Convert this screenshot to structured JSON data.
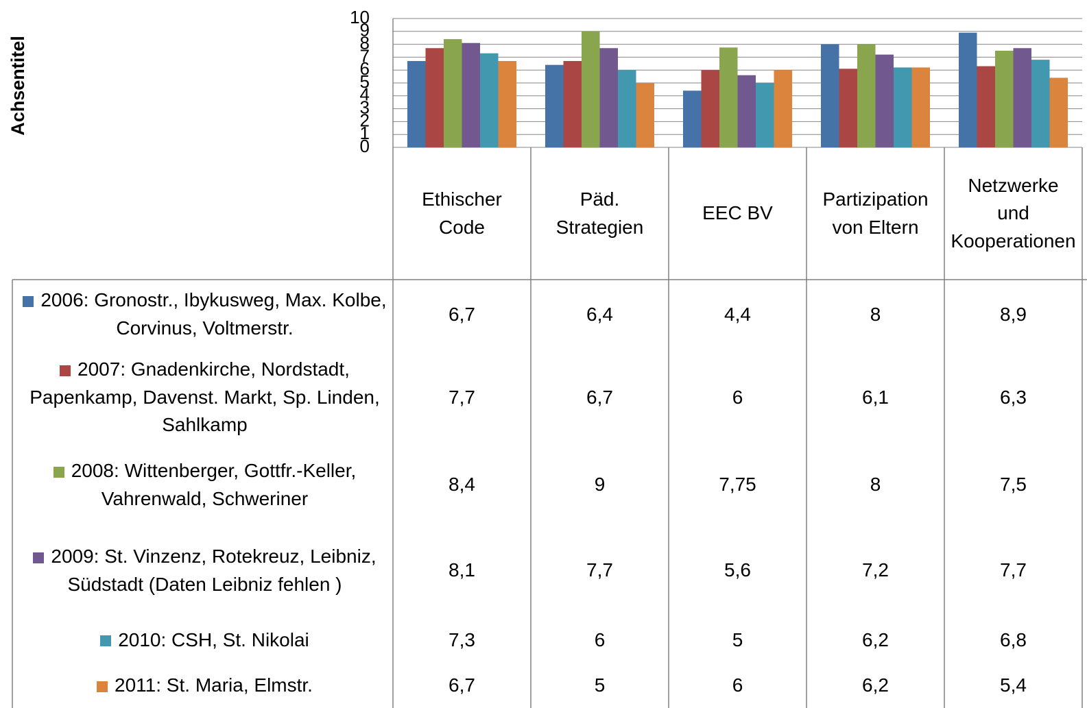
{
  "chart_data": {
    "type": "bar",
    "y_axis_title": "Achsentitel",
    "categories": [
      "Ethischer Code",
      "Päd. Strategien",
      "EEC BV",
      "Partizipation von Eltern",
      "Netzwerke und Kooperationen"
    ],
    "series": [
      {
        "name": "2006:  Gronostr., Ibykusweg, Max. Kolbe, Corvinus, Voltmerstr.",
        "color": "#4572a7",
        "values": [
          6.7,
          6.4,
          4.4,
          8,
          8.9
        ],
        "value_labels": [
          "6,7",
          "6,4",
          "4,4",
          "8",
          "8,9"
        ]
      },
      {
        "name": "2007: Gnadenkirche, Nordstadt, Papenkamp, Davenst. Markt, Sp. Linden, Sahlkamp",
        "color": "#aa4643",
        "values": [
          7.7,
          6.7,
          6,
          6.1,
          6.3
        ],
        "value_labels": [
          "7,7",
          "6,7",
          "6",
          "6,1",
          "6,3"
        ]
      },
      {
        "name": "2008: Wittenberger, Gottfr.-Keller, Vahrenwald, Schweriner",
        "color": "#89a54e",
        "values": [
          8.4,
          9,
          7.75,
          8,
          7.5
        ],
        "value_labels": [
          "8,4",
          "9",
          "7,75",
          "8",
          "7,5"
        ]
      },
      {
        "name": "2009: St. Vinzenz, Rotekreuz, Leibniz, Südstadt (Daten Leibniz fehlen )",
        "color": "#71588f",
        "values": [
          8.1,
          7.7,
          5.6,
          7.2,
          7.7
        ],
        "value_labels": [
          "8,1",
          "7,7",
          "5,6",
          "7,2",
          "7,7"
        ]
      },
      {
        "name": "2010: CSH, St. Nikolai",
        "color": "#4198af",
        "values": [
          7.3,
          6,
          5,
          6.2,
          6.8
        ],
        "value_labels": [
          "7,3",
          "6",
          "5",
          "6,2",
          "6,8"
        ]
      },
      {
        "name": "2011: St. Maria, Elmstr.",
        "color": "#db843d",
        "values": [
          6.7,
          5,
          6,
          6.2,
          5.4
        ],
        "value_labels": [
          "6,7",
          "5",
          "6",
          "6,2",
          "5,4"
        ]
      }
    ],
    "ylim": [
      0,
      10
    ],
    "yticks": [
      0,
      1,
      2,
      3,
      4,
      5,
      6,
      7,
      8,
      9,
      10
    ],
    "grid": true
  }
}
